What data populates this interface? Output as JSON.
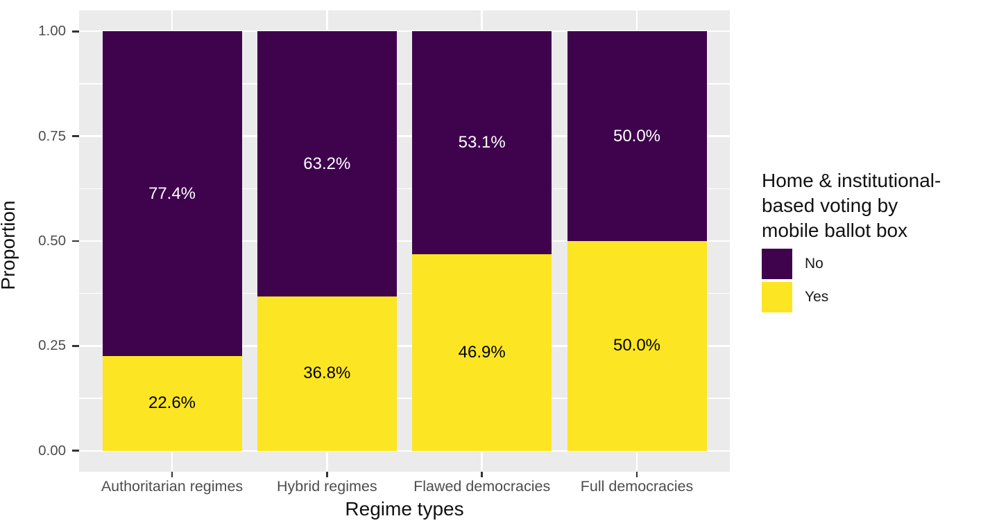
{
  "chart_data": {
    "type": "bar",
    "subtype": "stacked-proportion",
    "title": "",
    "xlabel": "Regime types",
    "ylabel": "Proportion",
    "categories": [
      "Authoritarian regimes",
      "Hybrid regimes",
      "Flawed democracies",
      "Full democracies"
    ],
    "series": [
      {
        "name": "Yes",
        "color": "#FCE522",
        "label_color": "#000000",
        "values": [
          0.226,
          0.368,
          0.469,
          0.5
        ],
        "labels": [
          "22.6%",
          "36.8%",
          "46.9%",
          "50.0%"
        ]
      },
      {
        "name": "No",
        "color": "#3F034E",
        "label_color": "#FFFFFF",
        "values": [
          0.774,
          0.632,
          0.531,
          0.5
        ],
        "labels": [
          "77.4%",
          "63.2%",
          "53.1%",
          "50.0%"
        ]
      }
    ],
    "stacking_order": "bottom-to-top",
    "ylim": [
      0,
      1
    ],
    "y_ticks": [
      {
        "value": 0.0,
        "label": "0.00"
      },
      {
        "value": 0.25,
        "label": "0.25"
      },
      {
        "value": 0.5,
        "label": "0.50"
      },
      {
        "value": 0.75,
        "label": "0.75"
      },
      {
        "value": 1.0,
        "label": "1.00"
      }
    ],
    "y_minor_ticks": [
      0.125,
      0.375,
      0.625,
      0.875
    ],
    "grid": "white-on-gray",
    "panel_color": "#EBEBEB",
    "gridline_color": "#FFFFFF",
    "legend": {
      "position": "right",
      "title_lines": [
        "Home & institutional-",
        "based voting by",
        "mobile ballot box"
      ],
      "entries": [
        {
          "label": "No",
          "color": "#3F034E"
        },
        {
          "label": "Yes",
          "color": "#FCE522"
        }
      ]
    }
  }
}
